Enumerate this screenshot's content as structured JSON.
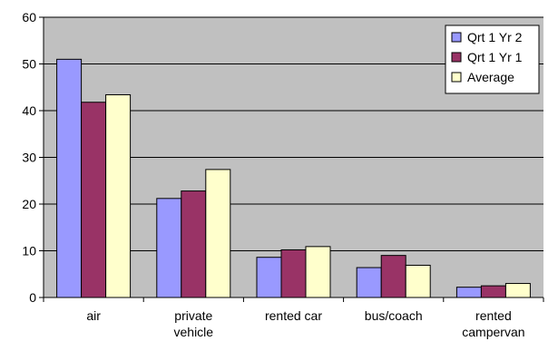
{
  "chart_data": {
    "type": "bar",
    "title": "",
    "xlabel": "",
    "ylabel": "",
    "ylim": [
      0,
      60
    ],
    "yticks": [
      0,
      10,
      20,
      30,
      40,
      50,
      60
    ],
    "grid": true,
    "legend_position": "top-right",
    "plot_background": "#c0c0c0",
    "categories": [
      [
        "air"
      ],
      [
        "private",
        "vehicle"
      ],
      [
        "rented car"
      ],
      [
        "bus/coach"
      ],
      [
        "rented",
        "campervan"
      ]
    ],
    "series": [
      {
        "name": "Qrt 1 Yr 2",
        "color": "#9999ff",
        "values": [
          51,
          21.2,
          8.6,
          6.4,
          2.2
        ]
      },
      {
        "name": "Qrt 1 Yr 1",
        "color": "#993366",
        "values": [
          41.8,
          22.8,
          10.2,
          9,
          2.5
        ]
      },
      {
        "name": "Average",
        "color": "#ffffcc",
        "values": [
          43.4,
          27.4,
          10.9,
          6.9,
          3
        ]
      }
    ]
  }
}
